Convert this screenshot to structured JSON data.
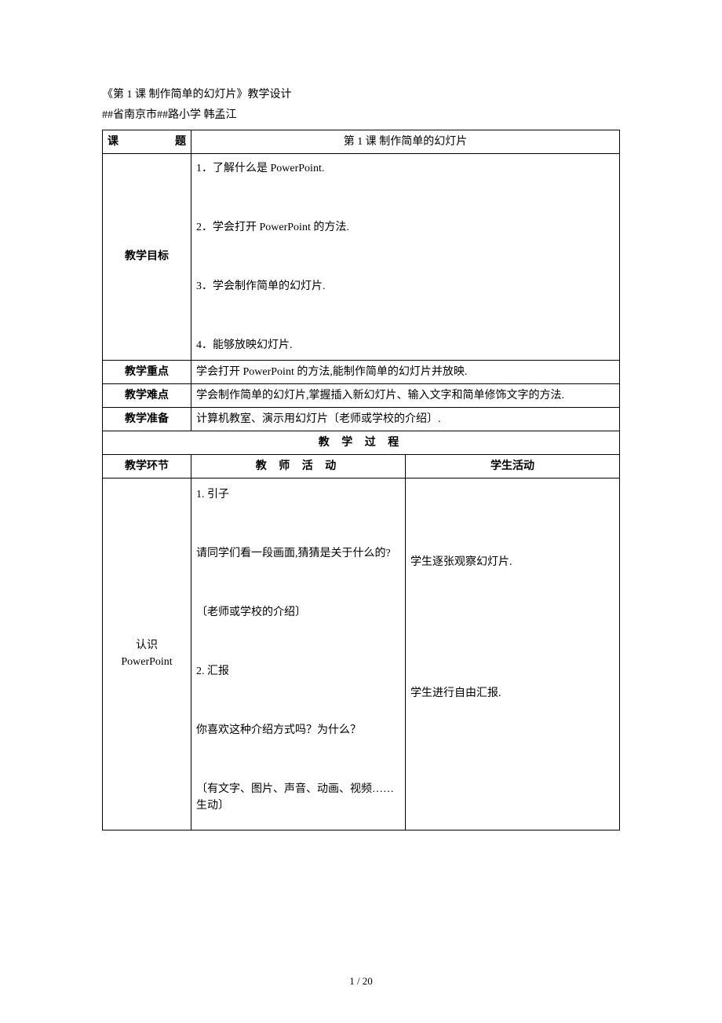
{
  "header": {
    "doc_title": "《第 1 课 制作简单的幻灯片》教学设计",
    "author_line": "##省南京市##路小学 韩孟江"
  },
  "row_title": {
    "label_left": "课",
    "label_right": "题",
    "value": "第 1 课 制作简单的幻灯片"
  },
  "objectives": {
    "label": "教学目标",
    "items": [
      "1．了解什么是 PowerPoint.",
      "2．学会打开 PowerPoint 的方法.",
      "3．学会制作简单的幻灯片.",
      "4．能够放映幻灯片."
    ]
  },
  "focus": {
    "label": "教学重点",
    "value": "学会打开 PowerPoint 的方法,能制作简单的幻灯片并放映."
  },
  "difficulty": {
    "label": "教学难点",
    "value": "学会制作简单的幻灯片,掌握插入新幻灯片、输入文字和简单修饰文字的方法."
  },
  "prepare": {
    "label": "教学准备",
    "value": "计算机教室、演示用幻灯片〔老师或学校的介绍〕."
  },
  "process_header": "教 学 过 程",
  "subheader": {
    "stage": "教学环节",
    "teacher": "教 师 活 动",
    "student": "学生活动"
  },
  "stage1": {
    "label_line1": "认识",
    "label_line2": "PowerPoint",
    "teacher_lines": [
      "1. 引子",
      "请同学们看一段画面,猜猜是关于什么的?",
      "〔老师或学校的介绍〕",
      "2. 汇报",
      "你喜欢这种介绍方式吗？为什么？",
      "〔有文字、图片、声音、动画、视频……生动〕"
    ],
    "student_lines": [
      "学生逐张观察幻灯片.",
      "学生进行自由汇报."
    ]
  },
  "page_number": "1 / 20",
  "colors": {
    "text": "#000000",
    "background": "#ffffff",
    "border": "#000000"
  },
  "typography": {
    "body_fontsize_pt": 10.5,
    "font_family": "SimSun"
  }
}
